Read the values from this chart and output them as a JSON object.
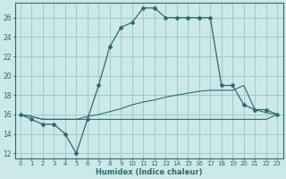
{
  "xlabel": "Humidex (Indice chaleur)",
  "bg_color": "#cce8e8",
  "grid_color": "#99cccc",
  "line_color": "#2d6b6b",
  "xlim": [
    -0.5,
    23.5
  ],
  "ylim": [
    11.5,
    27.5
  ],
  "xticks": [
    0,
    1,
    2,
    3,
    4,
    5,
    6,
    7,
    8,
    9,
    10,
    11,
    12,
    13,
    14,
    15,
    16,
    17,
    18,
    19,
    20,
    21,
    22,
    23
  ],
  "yticks": [
    12,
    14,
    16,
    18,
    20,
    22,
    24,
    26
  ],
  "curve1_x": [
    0,
    1,
    2,
    3,
    4,
    5,
    6,
    7,
    8,
    9,
    10,
    11,
    12,
    13,
    14,
    15,
    16,
    17,
    18,
    19,
    20,
    21,
    22,
    23
  ],
  "curve1_y": [
    16.0,
    15.5,
    15.0,
    15.0,
    14.0,
    12.0,
    15.5,
    19.0,
    23.0,
    25.0,
    25.5,
    27.0,
    27.0,
    26.0,
    26.0,
    26.0,
    26.0,
    26.0,
    19.0,
    19.0,
    17.0,
    16.5,
    16.5,
    16.0
  ],
  "curve2_x": [
    0,
    1,
    2,
    3,
    4,
    5,
    6,
    7,
    8,
    9,
    10,
    11,
    12,
    13,
    14,
    15,
    16,
    17,
    18,
    19,
    20,
    21,
    22,
    23
  ],
  "curve2_y": [
    16.0,
    15.8,
    15.5,
    15.5,
    15.5,
    15.5,
    15.8,
    16.0,
    16.3,
    16.6,
    17.0,
    17.3,
    17.5,
    17.8,
    18.0,
    18.2,
    18.4,
    18.5,
    18.5,
    18.5,
    19.0,
    16.5,
    16.2,
    16.0
  ],
  "curve3_x": [
    0,
    1,
    2,
    3,
    4,
    5,
    6,
    7,
    8,
    9,
    10,
    11,
    12,
    13,
    14,
    15,
    16,
    17,
    18,
    19,
    20,
    21,
    22,
    23
  ],
  "curve3_y": [
    16.0,
    15.8,
    15.5,
    15.5,
    15.5,
    15.5,
    15.5,
    15.5,
    15.5,
    15.5,
    15.5,
    15.5,
    15.5,
    15.5,
    15.5,
    15.5,
    15.5,
    15.5,
    15.5,
    15.5,
    15.5,
    15.5,
    15.5,
    16.0
  ]
}
